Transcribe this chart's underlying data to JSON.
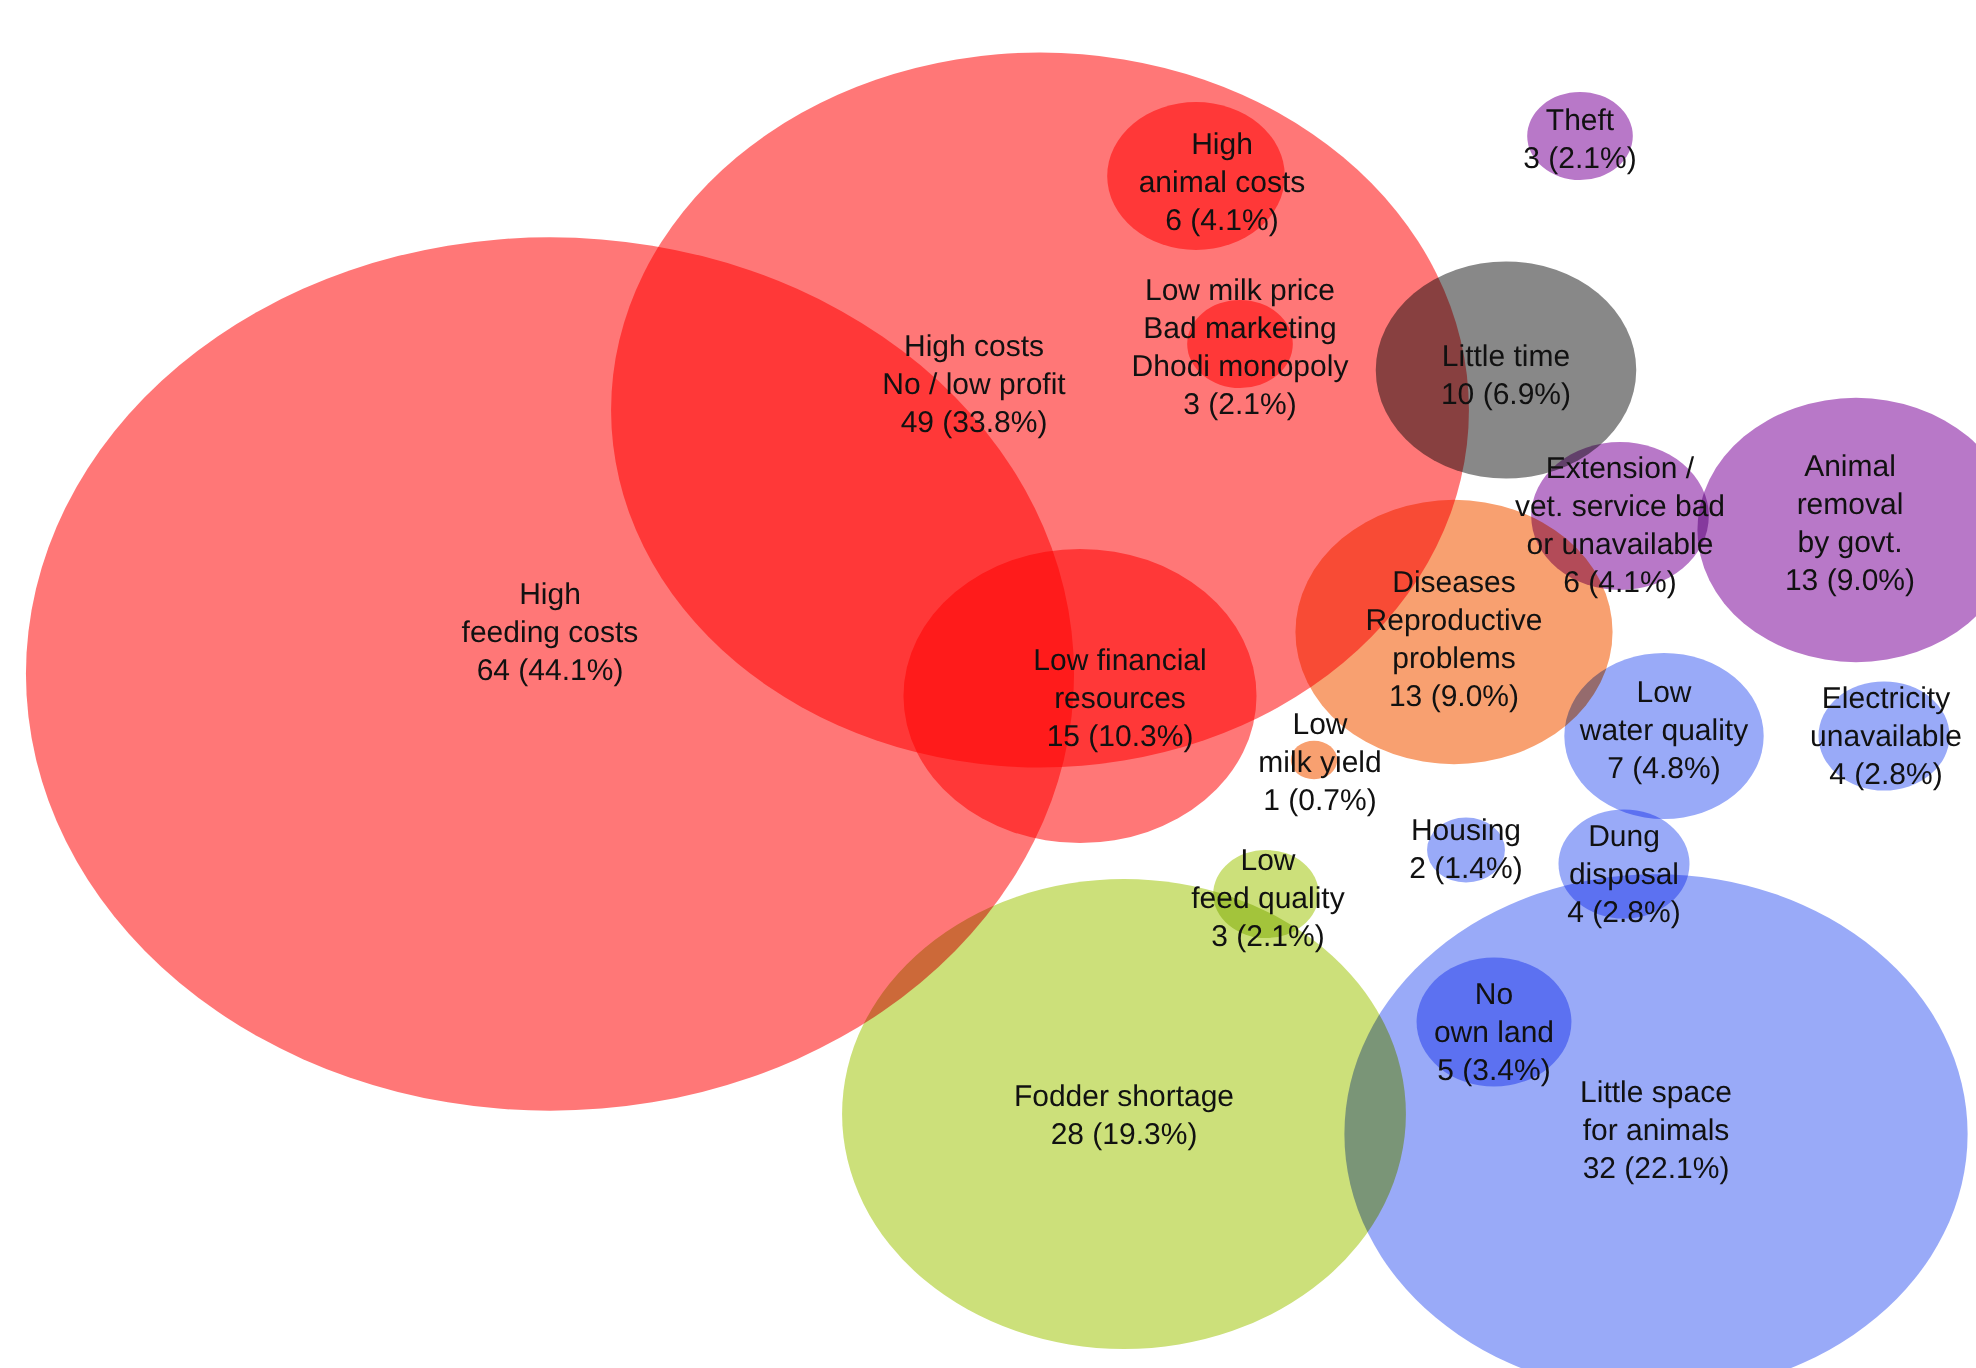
{
  "chart_data": {
    "type": "other",
    "categories": [
      "High\nfeeding costs",
      "High costs\nNo / low profit",
      "High\nanimal costs",
      "Low milk price\nBad marketing\nDhodi monopoly",
      "Low financial\nresources",
      "Little time",
      "Theft",
      "Extension /\nvet. service bad\nor unavailable",
      "Animal\nremoval\nby govt.",
      "Diseases\nReproductive\nproblems",
      "Low\nwater quality",
      "Electricity\nunavailable",
      "Low\nmilk yield",
      "Housing",
      "Dung\ndisposal",
      "Low\nfeed quality",
      "Fodder shortage",
      "No\nown land",
      "Little space\nfor animals"
    ],
    "values": [
      64,
      49,
      6,
      3,
      15,
      10,
      3,
      6,
      13,
      13,
      7,
      4,
      1,
      2,
      4,
      3,
      28,
      5,
      32
    ],
    "value_labels": [
      "64 (44.1%)",
      "49 (33.8%)",
      "6 (4.1%)",
      "3 (2.1%)",
      "15 (10.3%)",
      "10 (6.9%)",
      "3 (2.1%)",
      "6 (4.1%)",
      "13 (9.0%)",
      "13 (9.0%)",
      "7 (4.8%)",
      "4 (2.8%)",
      "1 (0.7%)",
      "2 (1.4%)",
      "4 (2.8%)",
      "3 (2.1%)",
      "28 (19.3%)",
      "5 (3.4%)",
      "32 (22.1%)"
    ],
    "colors": [
      "#ff7777",
      "#ff7777",
      "#ff7777",
      "#ff7777",
      "#ff7777",
      "#888888",
      "#b878c8",
      "#b878c8",
      "#b878c8",
      "#f8a070",
      "#99aaf8",
      "#99aaf8",
      "#f8a070",
      "#99aaf8",
      "#99aaf8",
      "#cce07a",
      "#cce07a",
      "#99aaf8",
      "#99aaf8"
    ]
  }
}
